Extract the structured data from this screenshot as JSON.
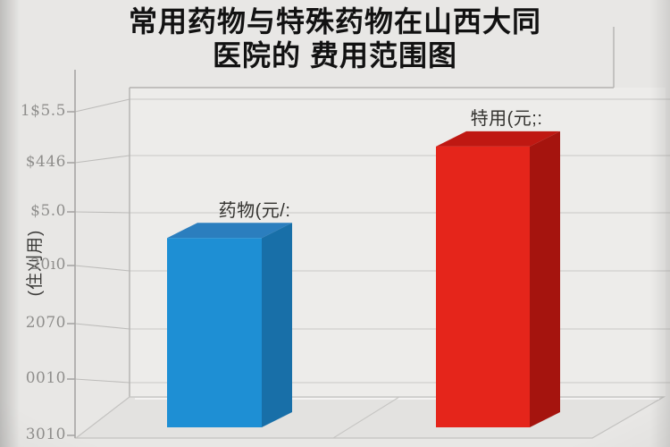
{
  "page": {
    "background": "#e8e7e5"
  },
  "title": {
    "line1": "常用药物与特殊药物在山西大同",
    "line2": "医院的 费用范围图"
  },
  "y_axis": {
    "unit_label": "(住刈用)",
    "tick_labels": [
      "1$5.5",
      "$446",
      "$5.0",
      "20ı0",
      "2070",
      "0010",
      "3010"
    ]
  },
  "bars": [
    {
      "label": "药物(元/:",
      "height_fraction": 0.6,
      "colors": {
        "front": "#1e8fd4",
        "top": "#2b7ebe",
        "side": "#186fa8"
      }
    },
    {
      "label": "特用(元;:",
      "height_fraction": 0.89,
      "colors": {
        "front": "#e5251b",
        "top": "#bf1812",
        "side": "#a5140e"
      }
    }
  ],
  "chart_data": {
    "type": "bar",
    "style": "3d-column",
    "title": "常用药物与特殊药物在山西大同医院的 费用范围图",
    "categories": [
      "药物(元/:",
      "特用(元;:"
    ],
    "series": [
      {
        "name": "费用范围",
        "values_fraction_of_axis": [
          0.6,
          0.89
        ]
      }
    ],
    "y_tick_labels_top_to_bottom": [
      "1$5.5",
      "$446",
      "$5.0",
      "20ı0",
      "2070",
      "0010",
      "3010"
    ],
    "ylabel": "(住刈用)",
    "xlabel": "",
    "colors": [
      "#1e8fd4",
      "#e5251b"
    ],
    "grid": "horizontal",
    "legend": "none"
  }
}
